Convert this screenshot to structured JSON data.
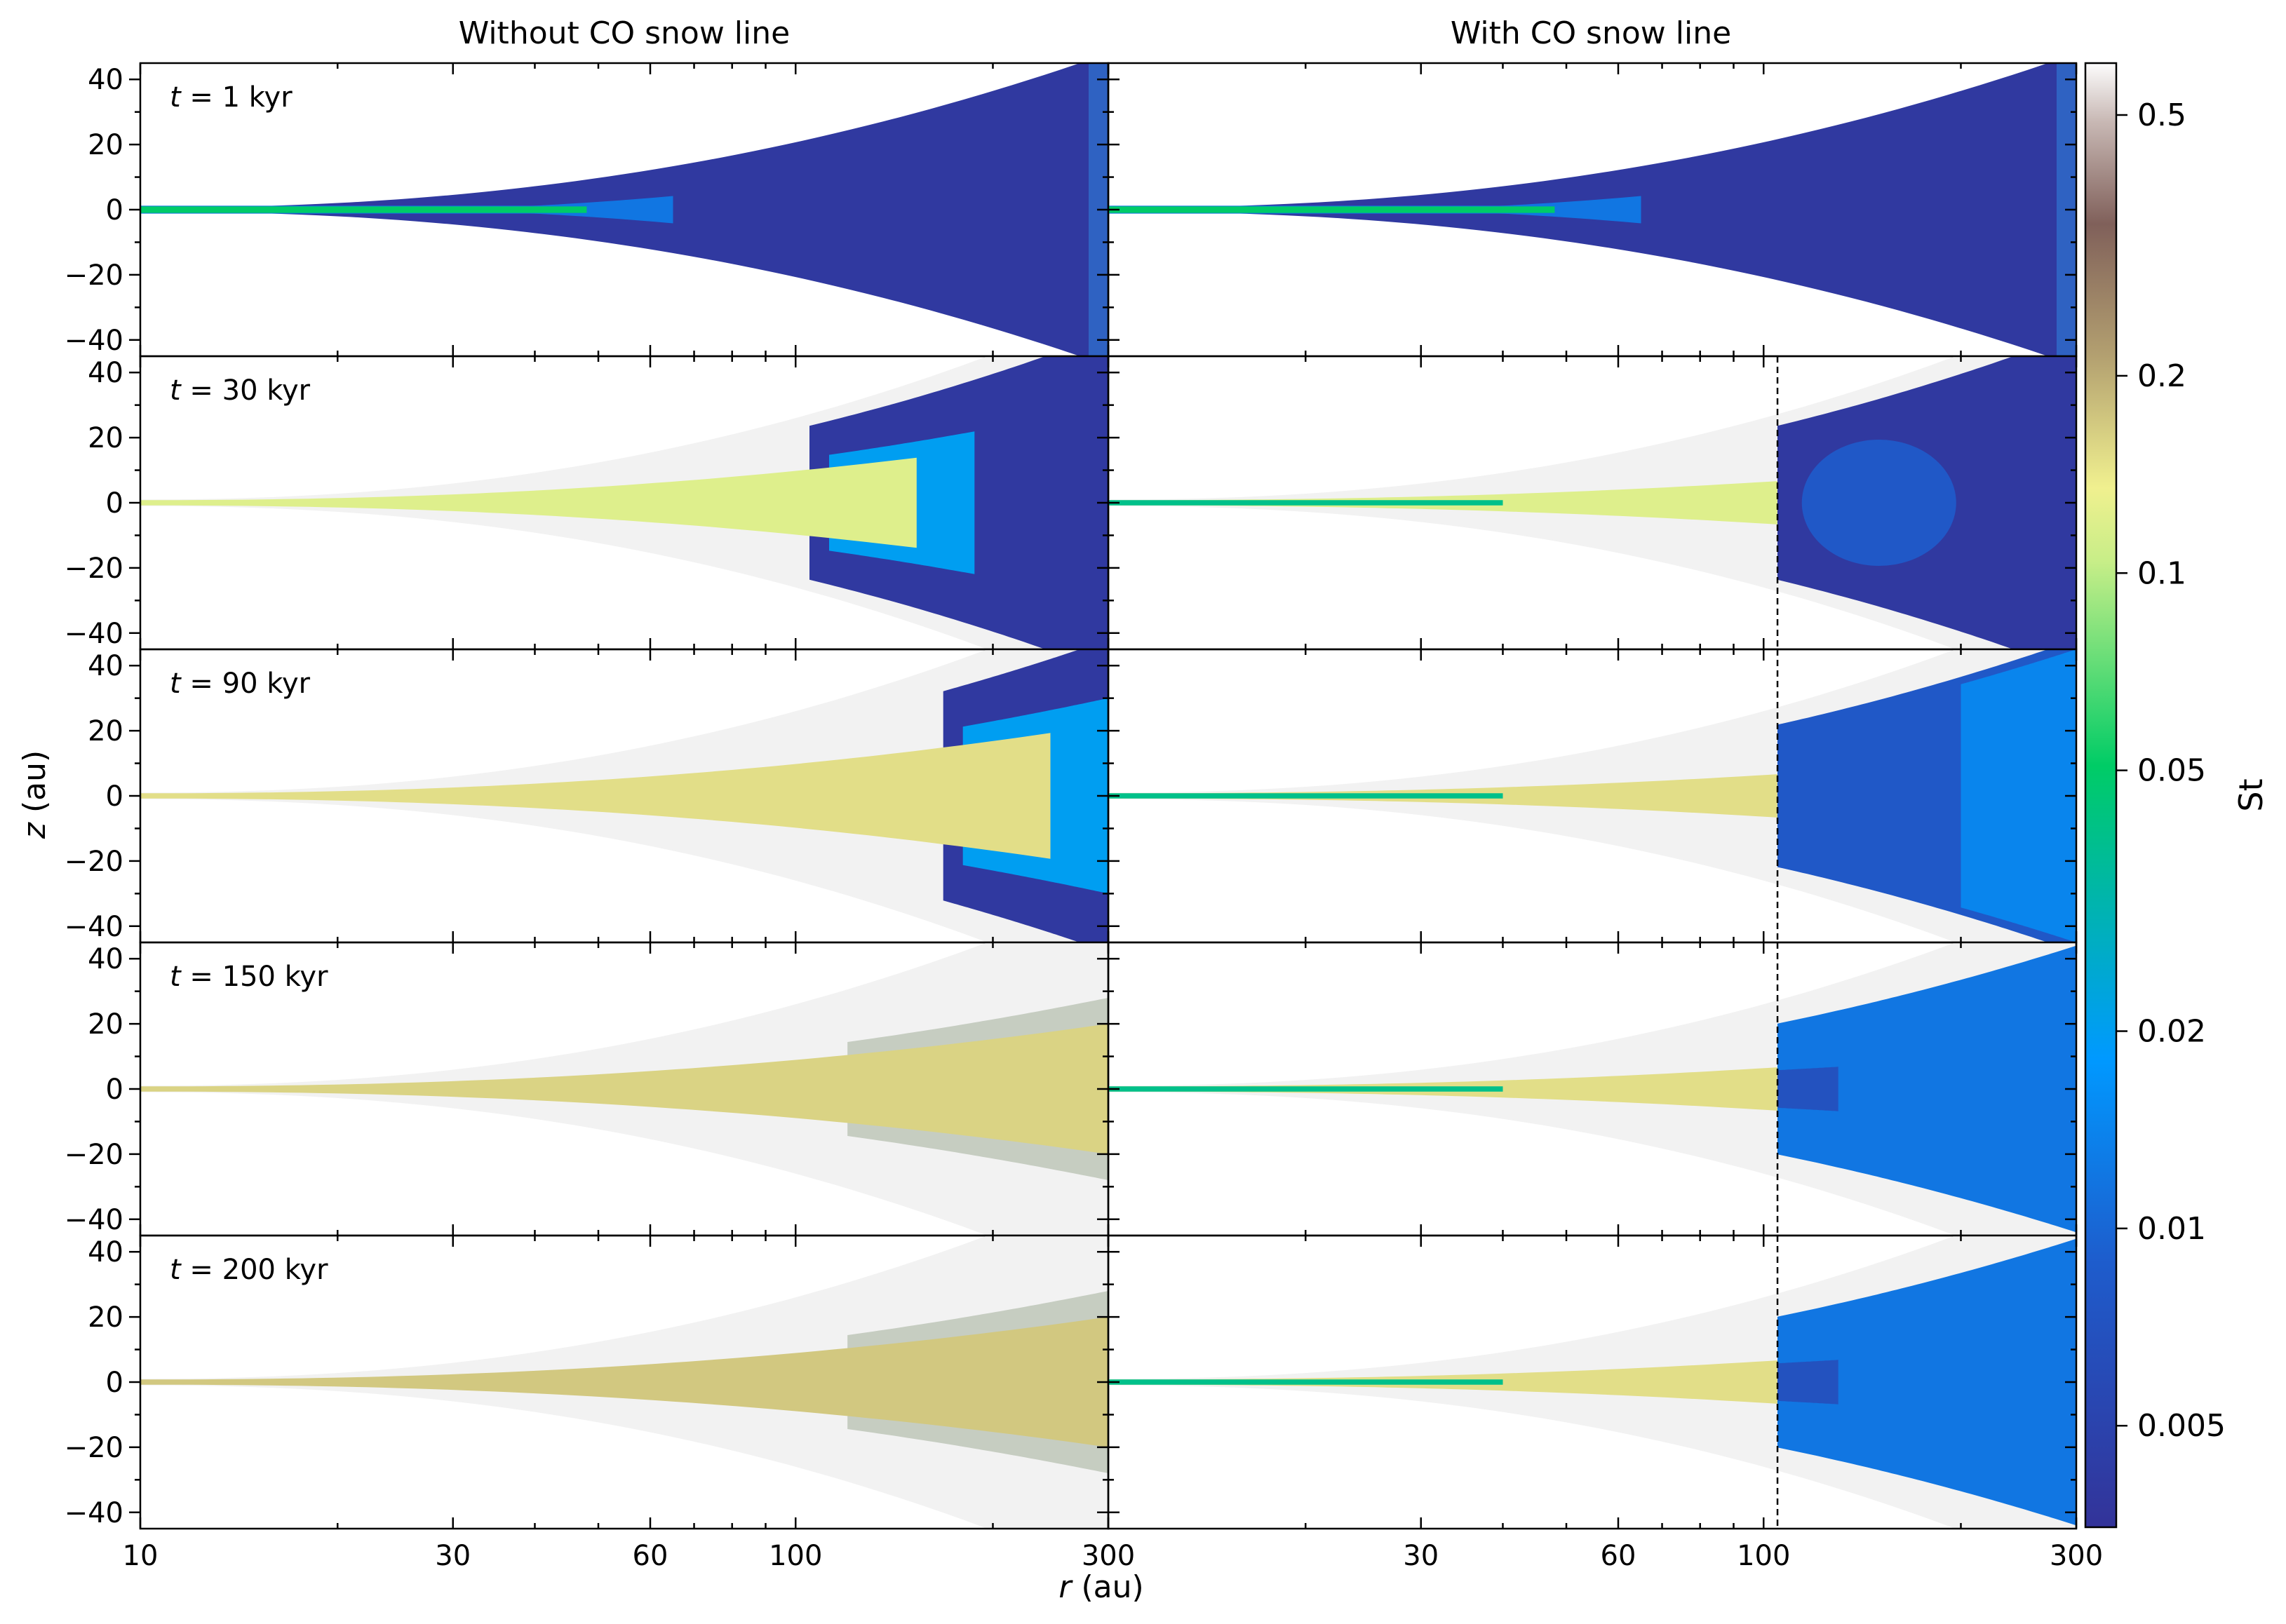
{
  "columns": [
    "Without CO snow line",
    "With CO snow line"
  ],
  "time_labels": [
    "1 kyr",
    "30 kyr",
    "90 kyr",
    "150 kyr",
    "200 kyr"
  ],
  "time_prefix": "t",
  "axes": {
    "xlabel_var": "r",
    "xlabel_unit": "(au)",
    "ylabel_var": "z",
    "ylabel_unit": "(au)",
    "x_scale": "log",
    "xlim": [
      10,
      300
    ],
    "ylim": [
      -45,
      45
    ],
    "x_ticks": [
      10,
      30,
      60,
      100,
      300
    ],
    "x_ticks_right_panel": [
      30,
      60,
      100,
      300
    ],
    "y_ticks": [
      40,
      20,
      0,
      -20,
      -40
    ]
  },
  "colorbar": {
    "label": "St",
    "scale": "log",
    "range": [
      0.0035,
      0.6
    ],
    "ticks": [
      0.5,
      0.2,
      0.1,
      0.05,
      0.02,
      0.01,
      0.005
    ],
    "tick_labels": [
      "0.5",
      "0.2",
      "0.1",
      "0.05",
      "0.02",
      "0.01",
      "0.005"
    ],
    "colormap": [
      "#333399",
      "#0099ff",
      "#00cc66",
      "#f0f08f",
      "#80605a",
      "#fcfcfc"
    ]
  },
  "chart_data": {
    "type": "scatter",
    "description_of_encoding": "particle positions (r, z) coloured by Stokes number St",
    "snow_line_r_au": 105,
    "panels": [
      {
        "column": 0,
        "time_kyr": 1,
        "inner_St": 0.05,
        "outer_St": 0.004,
        "transition_r_au": 55,
        "disk_edge_r_au": 300,
        "envelope_z_at_300": 45
      },
      {
        "column": 1,
        "time_kyr": 1,
        "inner_St": 0.05,
        "outer_St": 0.004,
        "transition_r_au": 55,
        "disk_edge_r_au": 300,
        "envelope_z_at_300": 45
      },
      {
        "column": 0,
        "time_kyr": 30,
        "inner_St": 0.12,
        "outer_St": 0.004,
        "front_r_au": 150
      },
      {
        "column": 1,
        "time_kyr": 30,
        "inner_St": 0.12,
        "outer_St": 0.008,
        "front_r_au": 105
      },
      {
        "column": 0,
        "time_kyr": 90,
        "inner_St": 0.15,
        "outer_St": 0.004,
        "front_r_au": 240
      },
      {
        "column": 1,
        "time_kyr": 90,
        "inner_St": 0.15,
        "outer_St": 0.008,
        "front_r_au": 105
      },
      {
        "column": 0,
        "time_kyr": 150,
        "inner_St": 0.16,
        "outer_St": 0.16,
        "front_r_au": 300
      },
      {
        "column": 1,
        "time_kyr": 150,
        "inner_St": 0.15,
        "outer_St": 0.012,
        "front_r_au": 105
      },
      {
        "column": 0,
        "time_kyr": 200,
        "inner_St": 0.17,
        "outer_St": 0.17,
        "front_r_au": 300
      },
      {
        "column": 1,
        "time_kyr": 200,
        "inner_St": 0.15,
        "outer_St": 0.012,
        "front_r_au": 105
      }
    ]
  }
}
